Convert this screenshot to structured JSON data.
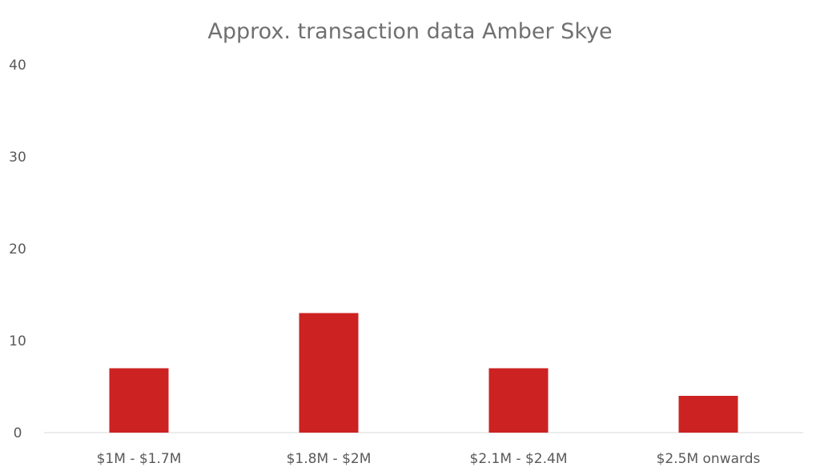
{
  "chart_data": {
    "type": "bar",
    "title": "Approx. transaction data Amber Skye",
    "categories": [
      "$1M - $1.7M",
      "$1.8M - $2M",
      "$2.1M - $2.4M",
      "$2.5M onwards"
    ],
    "values": [
      7,
      13,
      7,
      4
    ],
    "ylim": [
      0,
      40
    ],
    "yticks": [
      0,
      10,
      20,
      30,
      40
    ],
    "xlabel": "",
    "ylabel": "",
    "grid": false,
    "legend": "none",
    "colors": {
      "bar": "#cc2222",
      "axis": "#d9d9d9",
      "title": "#707070",
      "tick_text": "#595959"
    }
  }
}
